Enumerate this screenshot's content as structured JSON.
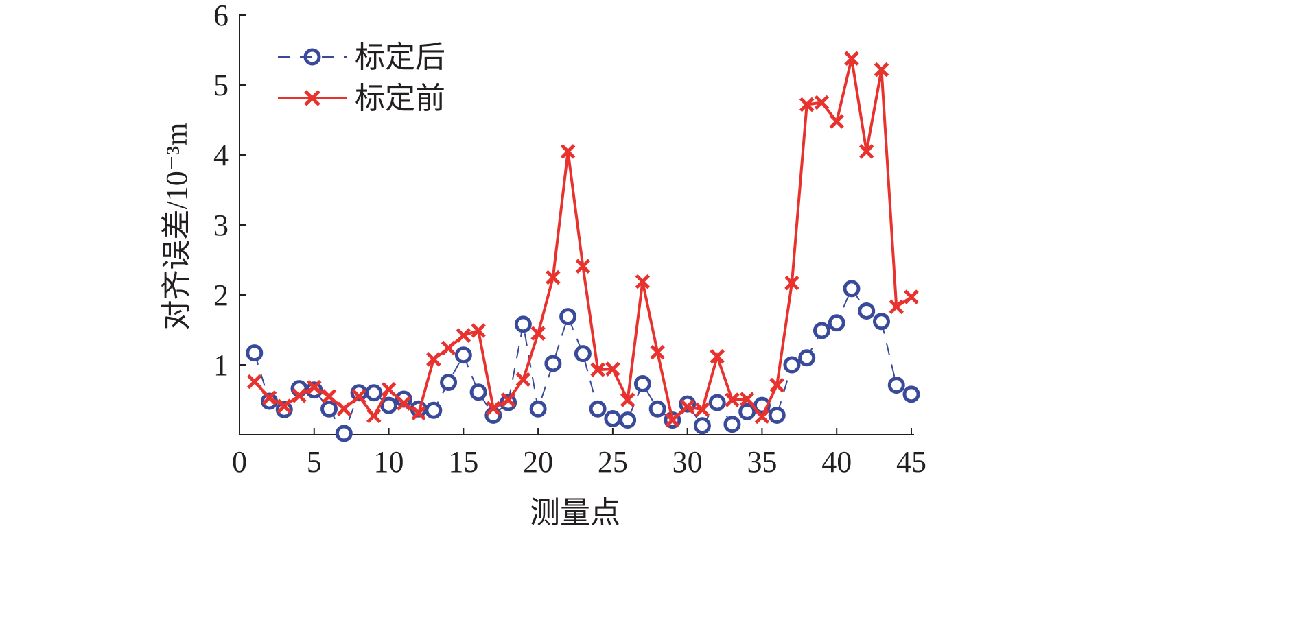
{
  "chart_data": {
    "type": "line",
    "title": "",
    "xlabel": "测量点",
    "ylabel": "对齐误差/10⁻³m",
    "xlim": [
      0,
      45
    ],
    "ylim": [
      0,
      6
    ],
    "xticks": [
      0,
      5,
      10,
      15,
      20,
      25,
      30,
      35,
      40,
      45
    ],
    "yticks": [
      1,
      2,
      3,
      4,
      5,
      6
    ],
    "grid": false,
    "legend_position": "top-left",
    "x": [
      1,
      2,
      3,
      4,
      5,
      6,
      7,
      8,
      9,
      10,
      11,
      12,
      13,
      14,
      15,
      16,
      17,
      18,
      19,
      20,
      21,
      22,
      23,
      24,
      25,
      26,
      27,
      28,
      29,
      30,
      31,
      32,
      33,
      34,
      35,
      36,
      37,
      38,
      39,
      40,
      41,
      42,
      43,
      44,
      45
    ],
    "series": [
      {
        "name": "标定后",
        "color": "#3a4a9a",
        "marker": "circle",
        "line": "dashed",
        "values": [
          1.17,
          0.48,
          0.36,
          0.66,
          0.64,
          0.37,
          0.02,
          0.6,
          0.6,
          0.42,
          0.51,
          0.37,
          0.35,
          0.75,
          1.14,
          0.61,
          0.28,
          0.46,
          1.58,
          0.37,
          1.02,
          1.69,
          1.16,
          0.37,
          0.23,
          0.21,
          0.73,
          0.37,
          0.21,
          0.44,
          0.13,
          0.46,
          0.15,
          0.33,
          0.42,
          0.28,
          1.0,
          1.1,
          1.49,
          1.6,
          2.09,
          1.77,
          1.62,
          0.71,
          0.58
        ]
      },
      {
        "name": "标定前",
        "color": "#e8322e",
        "marker": "x",
        "line": "solid",
        "values": [
          0.76,
          0.53,
          0.41,
          0.56,
          0.68,
          0.55,
          0.37,
          0.55,
          0.27,
          0.65,
          0.45,
          0.31,
          1.08,
          1.24,
          1.42,
          1.49,
          0.38,
          0.5,
          0.79,
          1.45,
          2.25,
          4.05,
          2.41,
          0.93,
          0.94,
          0.5,
          2.19,
          1.18,
          0.21,
          0.4,
          0.36,
          1.12,
          0.5,
          0.51,
          0.26,
          0.71,
          2.17,
          4.72,
          4.75,
          4.48,
          5.38,
          4.05,
          5.22,
          1.83,
          1.97
        ]
      }
    ]
  }
}
